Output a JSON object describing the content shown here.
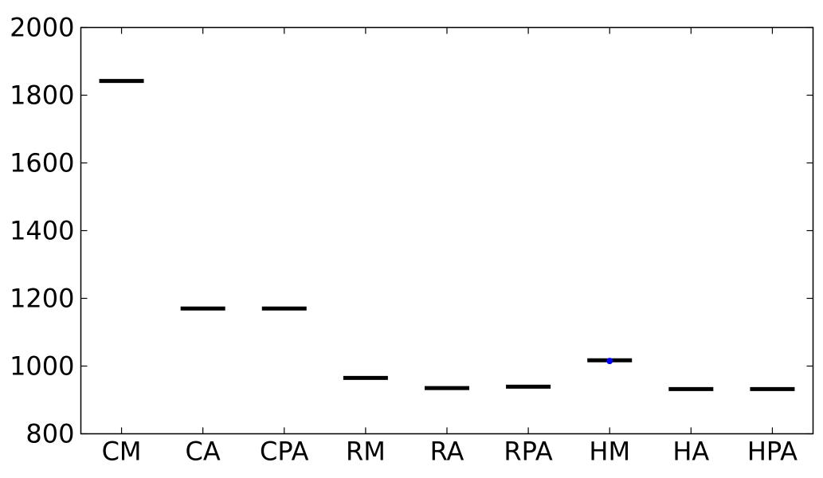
{
  "chart_data": {
    "type": "box",
    "title": "",
    "xlabel": "",
    "ylabel": "",
    "ylim": [
      800,
      2000
    ],
    "yticks": [
      800,
      1000,
      1200,
      1400,
      1600,
      1800,
      2000
    ],
    "grid": false,
    "categories": [
      "CM",
      "CA",
      "CPA",
      "RM",
      "RA",
      "RPA",
      "HM",
      "HA",
      "HPA"
    ],
    "values": [
      1842,
      1170,
      1170,
      965,
      935,
      939,
      1017,
      932,
      932
    ],
    "outliers": [
      {
        "category": "HM",
        "y": 1015
      }
    ],
    "colors": {
      "median": "#000000",
      "outlier": "#0000ff",
      "axes": "#000000",
      "background": "#ffffff"
    }
  }
}
